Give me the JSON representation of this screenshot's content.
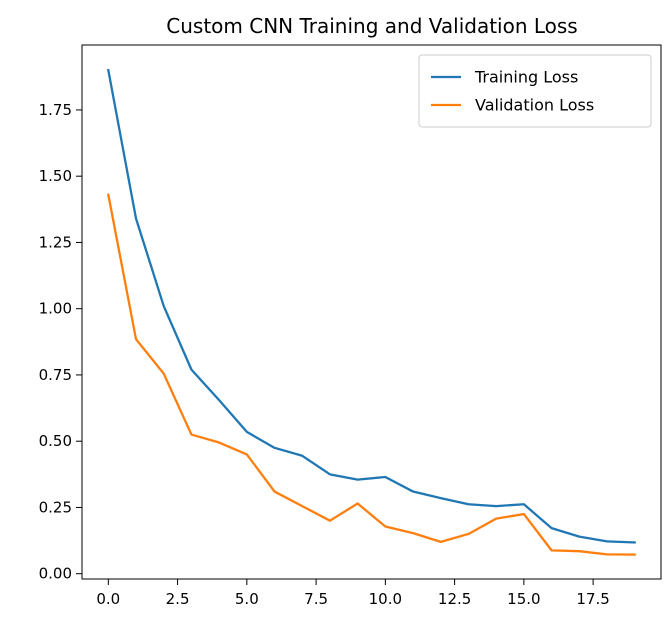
{
  "chart_data": {
    "type": "line",
    "title": "Custom CNN Training and Validation Loss",
    "xlabel": "",
    "ylabel": "",
    "xlim": [
      -0.95,
      19.95
    ],
    "ylim": [
      -0.02,
      1.995
    ],
    "x_ticks": [
      0.0,
      2.5,
      5.0,
      7.5,
      10.0,
      12.5,
      15.0,
      17.5
    ],
    "x_tick_labels": [
      "0.0",
      "2.5",
      "5.0",
      "7.5",
      "10.0",
      "12.5",
      "15.0",
      "17.5"
    ],
    "y_ticks": [
      0.0,
      0.25,
      0.5,
      0.75,
      1.0,
      1.25,
      1.5,
      1.75
    ],
    "y_tick_labels": [
      "0.00",
      "0.25",
      "0.50",
      "0.75",
      "1.00",
      "1.25",
      "1.50",
      "1.75"
    ],
    "grid": false,
    "legend_position": "top-right",
    "x": [
      0,
      1,
      2,
      3,
      4,
      5,
      6,
      7,
      8,
      9,
      10,
      11,
      12,
      13,
      14,
      15,
      16,
      17,
      18,
      19
    ],
    "series": [
      {
        "name": "Training Loss",
        "color": "#1f77b4",
        "values": [
          1.9,
          1.34,
          1.01,
          0.77,
          0.655,
          0.535,
          0.475,
          0.445,
          0.375,
          0.355,
          0.365,
          0.31,
          0.285,
          0.262,
          0.255,
          0.262,
          0.172,
          0.14,
          0.122,
          0.118
        ]
      },
      {
        "name": "Validation Loss",
        "color": "#ff7f0e",
        "values": [
          1.43,
          0.885,
          0.755,
          0.525,
          0.495,
          0.45,
          0.31,
          0.255,
          0.2,
          0.265,
          0.178,
          0.153,
          0.12,
          0.15,
          0.208,
          0.225,
          0.088,
          0.085,
          0.073,
          0.072
        ]
      }
    ]
  }
}
